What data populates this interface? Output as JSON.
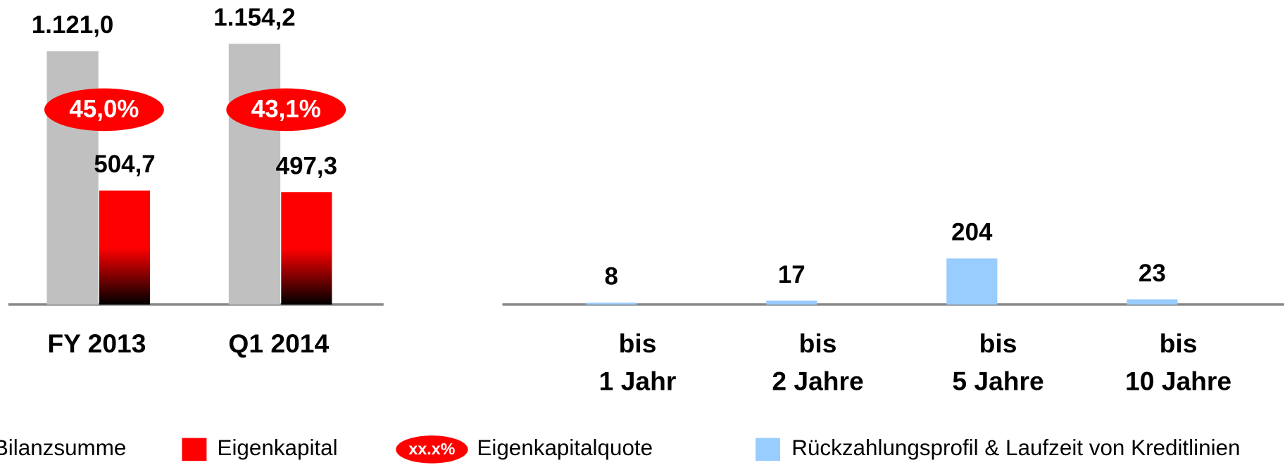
{
  "chart_data": [
    {
      "type": "bar",
      "categories": [
        "FY 2013",
        "Q1 2014"
      ],
      "series": [
        {
          "name": "Bilanzsumme",
          "color": "#c0c0c0",
          "values": [
            1121.0,
            1154.2
          ],
          "value_labels": [
            "1.121,0",
            "1.154,2"
          ]
        },
        {
          "name": "Eigenkapital",
          "color": "#ff0000",
          "values": [
            504.7,
            497.3
          ],
          "value_labels": [
            "504,7",
            "497,3"
          ]
        },
        {
          "name": "Eigenkapitalquote",
          "type": "badge",
          "color": "#ff0000",
          "values": [
            45.0,
            43.1
          ],
          "value_labels": [
            "45,0%",
            "43,1%"
          ],
          "legend_marker_label": "xx.x%"
        }
      ],
      "ylim": [
        0,
        1250
      ]
    },
    {
      "type": "bar",
      "categories": [
        [
          "bis",
          "1 Jahr"
        ],
        [
          "bis",
          "2 Jahre"
        ],
        [
          "bis",
          "5 Jahre"
        ],
        [
          "bis",
          "10 Jahre"
        ]
      ],
      "series": [
        {
          "name": "Rückzahlungsprofil & Laufzeit von Kreditlinien",
          "color": "#99ccff",
          "values": [
            8,
            17,
            204,
            23
          ]
        }
      ],
      "ylim": [
        0,
        1250
      ]
    }
  ]
}
